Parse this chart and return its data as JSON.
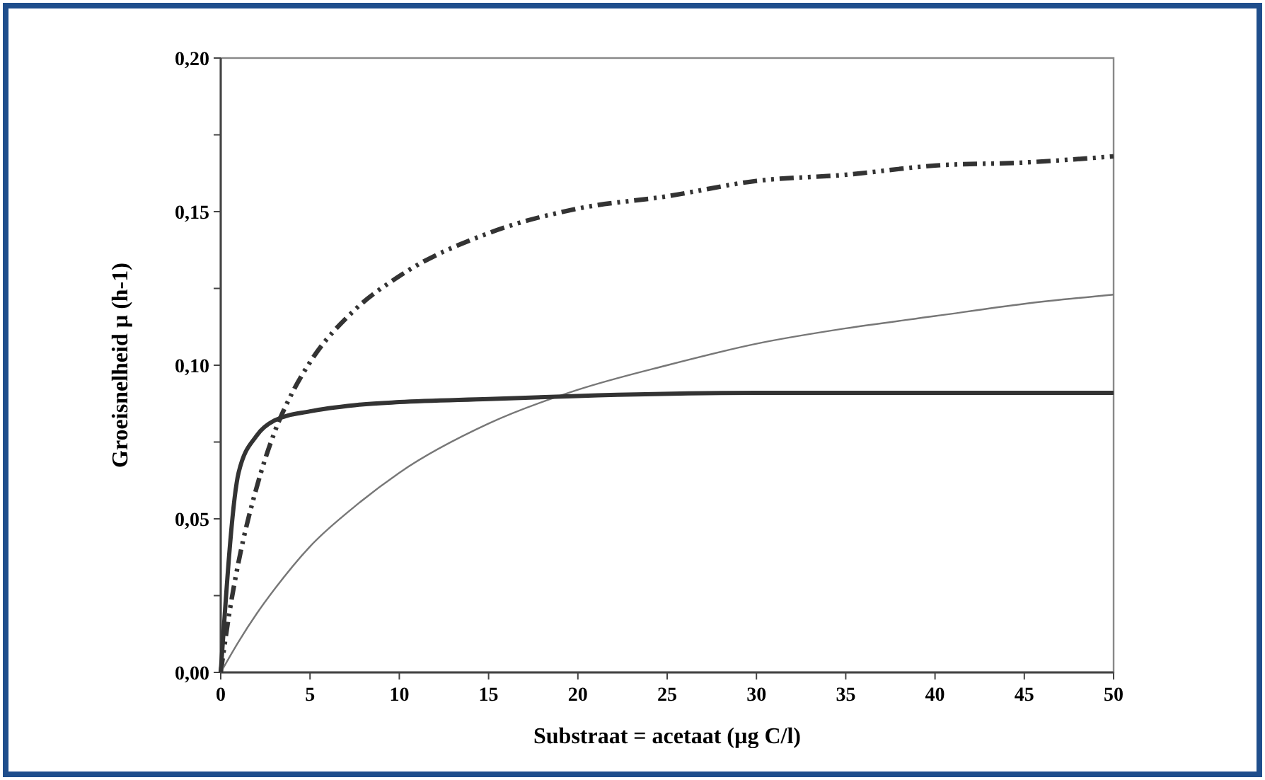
{
  "chart_data": {
    "type": "line",
    "xlabel": "Substraat = acetaat (µg C/l)",
    "ylabel": "Groeisnelheid µ (h-1)",
    "xlim": [
      0,
      50
    ],
    "ylim": [
      0,
      0.2
    ],
    "xticks": [
      0,
      5,
      10,
      15,
      20,
      25,
      30,
      35,
      40,
      45,
      50
    ],
    "yticks": [
      {
        "value": 0,
        "label": "0,00"
      },
      {
        "value": 0.025,
        "label": null
      },
      {
        "value": 0.05,
        "label": "0,05"
      },
      {
        "value": 0.075,
        "label": null
      },
      {
        "value": 0.1,
        "label": "0,10"
      },
      {
        "value": 0.125,
        "label": null
      },
      {
        "value": 0.15,
        "label": "0,15"
      },
      {
        "value": 0.175,
        "label": null
      },
      {
        "value": 0.2,
        "label": "0,20"
      }
    ],
    "grid": false,
    "series": [
      {
        "color": "#333333",
        "line_style": "dashed",
        "x": [
          0,
          0.5,
          1,
          2,
          3,
          4,
          5,
          7.5,
          10,
          15,
          20,
          25,
          30,
          35,
          40,
          45,
          50
        ],
        "values": [
          0,
          0.02,
          0.036,
          0.06,
          0.078,
          0.091,
          0.101,
          0.118,
          0.129,
          0.143,
          0.151,
          0.155,
          0.16,
          0.162,
          0.165,
          0.166,
          0.168
        ]
      },
      {
        "color": "#777777",
        "line_style": "solid",
        "x": [
          0,
          1,
          2,
          3,
          5,
          7.5,
          10,
          15,
          20,
          25,
          30,
          35,
          40,
          45,
          50
        ],
        "values": [
          0,
          0.01,
          0.019,
          0.027,
          0.041,
          0.054,
          0.065,
          0.081,
          0.092,
          0.1,
          0.107,
          0.112,
          0.116,
          0.12,
          0.123
        ]
      },
      {
        "color": "#333333",
        "line_style": "solid",
        "x": [
          0,
          1,
          2,
          3,
          5,
          7.5,
          10,
          15,
          20,
          30,
          40,
          50
        ],
        "values": [
          0,
          0.065,
          0.077,
          0.082,
          0.085,
          0.087,
          0.088,
          0.089,
          0.09,
          0.091,
          0.091,
          0.091
        ]
      }
    ]
  }
}
